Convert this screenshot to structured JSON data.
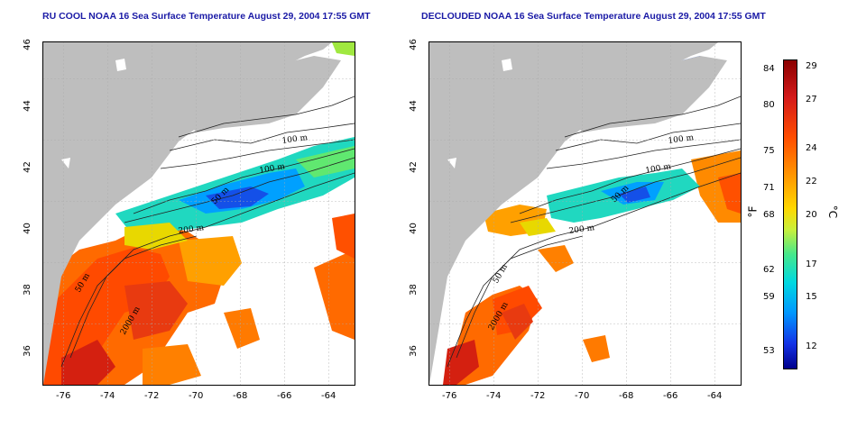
{
  "panels": [
    {
      "title": "RU COOL NOAA 16 Sea Surface Temperature August 29, 2004 17:55 GMT"
    },
    {
      "title": "DECLOUDED NOAA 16 Sea Surface Temperature August 29, 2004 17:55 GMT"
    }
  ],
  "x_ticks": [
    "-76",
    "-74",
    "-72",
    "-70",
    "-68",
    "-66",
    "-64"
  ],
  "y_ticks": [
    "46",
    "44",
    "42",
    "40",
    "38",
    "36"
  ],
  "contour_labels": [
    "100 m",
    "100 m",
    "200 m",
    "200 m",
    "50 m",
    "50 m",
    "2000 m"
  ],
  "colorbar": {
    "fahrenheit": [
      "84",
      "80",
      "75",
      "71",
      "68",
      "62",
      "59",
      "53"
    ],
    "celsius": [
      "29",
      "27",
      "24",
      "22",
      "20",
      "17",
      "15",
      "12"
    ],
    "f_unit": "°F",
    "c_unit": "°C"
  },
  "colors": {
    "land": "#bebebe",
    "ocean_no_data": "#ffffff",
    "title": "#1a1aa6"
  }
}
